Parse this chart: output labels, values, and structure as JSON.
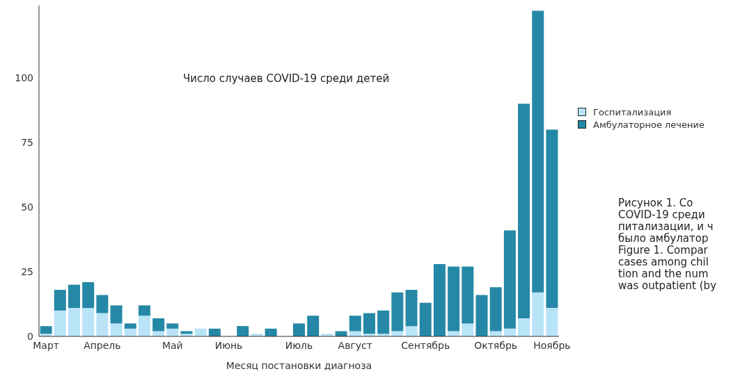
{
  "chart_data": {
    "type": "bar",
    "title": "Число случаев COVID-19 среди детей",
    "xlabel": "Месяц постановки диагноза",
    "categories": [
      "Март",
      null,
      null,
      null,
      "Апрель",
      null,
      null,
      null,
      null,
      "Май",
      null,
      null,
      null,
      "Июнь",
      null,
      null,
      null,
      null,
      "Июль",
      null,
      null,
      null,
      "Август",
      null,
      null,
      null,
      null,
      "Сентябрь",
      null,
      null,
      null,
      null,
      "Октябрь",
      null,
      null,
      null,
      "Ноябрь"
    ],
    "stacked": true,
    "series": [
      {
        "name": "Госпитализация",
        "color": "#b9e4f8",
        "values": [
          1,
          10,
          11,
          11,
          9,
          5,
          3,
          8,
          2,
          3,
          1,
          3,
          0,
          0,
          0,
          1,
          0,
          0,
          0,
          0,
          1,
          0,
          2,
          1,
          1,
          2,
          4,
          0,
          0,
          2,
          5,
          0,
          2,
          3,
          7,
          17,
          11
        ]
      },
      {
        "name": "Амбулаторное лечение",
        "color": "#2588a6",
        "values": [
          3,
          8,
          9,
          10,
          7,
          7,
          2,
          4,
          5,
          2,
          1,
          0,
          3,
          0,
          4,
          0,
          3,
          0,
          5,
          8,
          0,
          2,
          6,
          8,
          9,
          15,
          14,
          13,
          28,
          25,
          22,
          16,
          17,
          38,
          83,
          109,
          69
        ]
      }
    ],
    "ylim": [
      0,
      128
    ],
    "yticks": [
      0,
      25,
      50,
      75,
      100
    ],
    "grid": false,
    "legend": "right",
    "annotations": [
      "Рисунок 1. Со\nCOVID-19 среди\nпитализации, и ч\nбыло амбулатор",
      "Figure 1. Compar\ncases among chil\ntion and the num\nwas outpatient (by"
    ]
  }
}
